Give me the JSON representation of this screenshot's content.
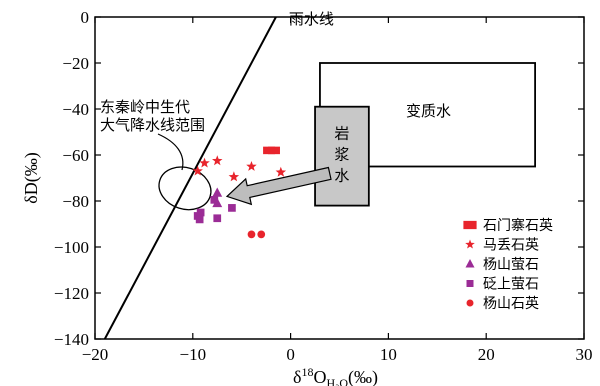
{
  "chart_data": {
    "type": "scatter",
    "xlabel": {
      "base": "δ",
      "sup": "18",
      "main": "O",
      "sub": "H₂O",
      "unit": "(‰)"
    },
    "ylabel": "δD(‰)",
    "xlim": [
      -20,
      30
    ],
    "ylim": [
      -140,
      0
    ],
    "xticks": [
      -20,
      -10,
      0,
      10,
      20,
      30
    ],
    "yticks": [
      0,
      -20,
      -40,
      -60,
      -80,
      -100,
      -120,
      -140
    ],
    "grid": false,
    "legend_position": "bottom-right",
    "colors": {
      "marker": "#e8242c",
      "marker_purple": "#9b2c96",
      "box": "#000000",
      "magma_fill": "#c8c8c8"
    },
    "series": [
      {
        "name": "石门寨石英",
        "marker": "rect",
        "color": "#e8242c",
        "points": [
          {
            "x": -2.2,
            "y": -58
          },
          {
            "x": -1.7,
            "y": -58
          }
        ]
      },
      {
        "name": "马丢石英",
        "marker": "star",
        "color": "#e8242c",
        "points": [
          {
            "x": -9.5,
            "y": -67
          },
          {
            "x": -8.8,
            "y": -63.5
          },
          {
            "x": -7.5,
            "y": -62.5
          },
          {
            "x": -5.8,
            "y": -69.5
          },
          {
            "x": -4.0,
            "y": -65
          },
          {
            "x": -1.0,
            "y": -67.5
          }
        ]
      },
      {
        "name": "杨山萤石",
        "marker": "triangle",
        "color": "#9b2c96",
        "points": [
          {
            "x": -7.5,
            "y": -76.5
          },
          {
            "x": -7.5,
            "y": -81
          }
        ]
      },
      {
        "name": "砭上萤石",
        "marker": "square",
        "color": "#9b2c96",
        "points": [
          {
            "x": -9.5,
            "y": -86.5
          },
          {
            "x": -9.2,
            "y": -85
          },
          {
            "x": -9.3,
            "y": -88
          },
          {
            "x": -7.8,
            "y": -79.5
          },
          {
            "x": -7.5,
            "y": -87.5
          },
          {
            "x": -6.0,
            "y": -83
          }
        ]
      },
      {
        "name": "杨山石英",
        "marker": "circle",
        "color": "#e8242c",
        "points": [
          {
            "x": -4.0,
            "y": -94.5
          },
          {
            "x": -3.0,
            "y": -94.5
          }
        ]
      }
    ],
    "meteoric_line": {
      "label": "雨水线",
      "from": {
        "x": -19,
        "y": -140
      },
      "to": {
        "x": -1.5,
        "y": 0
      }
    },
    "metamorphic_box": {
      "label": "变质水",
      "x1": 3,
      "x2": 25,
      "y1": -20,
      "y2": -65
    },
    "magmatic_box": {
      "label_lines": [
        "岩",
        "浆",
        "水"
      ],
      "x1": 2.5,
      "x2": 8,
      "y1": -39,
      "y2": -82
    },
    "qinling_range": {
      "label_lines": [
        "东秦岭中生代",
        "大气降水线范围"
      ],
      "ellipse": {
        "cx": -10.8,
        "cy": -74.5,
        "rx": 2.7,
        "ry": 9
      }
    },
    "arrow": {
      "from": {
        "x": 4.0,
        "y": -68
      },
      "to": {
        "x": -6.5,
        "y": -78
      }
    }
  }
}
